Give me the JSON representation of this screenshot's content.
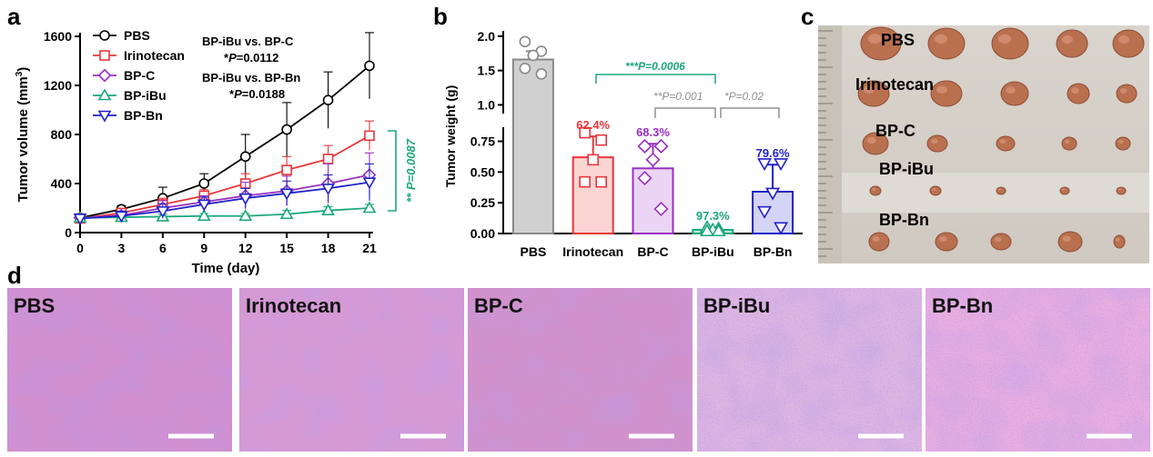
{
  "panel_labels": {
    "a": "a",
    "b": "b",
    "c": "c",
    "d": "d"
  },
  "chart_data": [
    {
      "type": "line",
      "panel": "a",
      "xlabel": "Time (day)",
      "ylabel_main": "Tumor volume (mm",
      "ylabel_sup": "3",
      "ylabel_end": ")",
      "xlim": [
        0,
        21
      ],
      "ylim": [
        0,
        1600
      ],
      "x": [
        0,
        3,
        6,
        9,
        12,
        15,
        18,
        21
      ],
      "xticks": [
        "0",
        "3",
        "6",
        "9",
        "12",
        "15",
        "18",
        "21"
      ],
      "yticks": [
        "0",
        "400",
        "800",
        "1200",
        "1600"
      ],
      "series": [
        {
          "name": "PBS",
          "color": "#000000",
          "marker": "circle",
          "values": [
            120,
            190,
            280,
            400,
            620,
            840,
            1080,
            1360
          ],
          "errors": [
            30,
            30,
            90,
            80,
            180,
            220,
            230,
            270
          ]
        },
        {
          "name": "Irinotecan",
          "color": "#e8373a",
          "marker": "square",
          "values": [
            115,
            160,
            230,
            300,
            400,
            510,
            600,
            790
          ],
          "errors": [
            30,
            30,
            50,
            50,
            80,
            110,
            110,
            120
          ]
        },
        {
          "name": "BP-C",
          "color": "#9b2fc1",
          "marker": "diamond",
          "values": [
            120,
            140,
            200,
            250,
            300,
            340,
            400,
            470
          ],
          "errors": [
            30,
            30,
            60,
            50,
            110,
            120,
            160,
            180
          ]
        },
        {
          "name": "BP-iBu",
          "color": "#1aa878",
          "marker": "triangle-up",
          "values": [
            120,
            125,
            130,
            135,
            135,
            150,
            180,
            200
          ],
          "errors": [
            30,
            20,
            20,
            20,
            20,
            30,
            30,
            30
          ]
        },
        {
          "name": "BP-Bn",
          "color": "#2121c8",
          "marker": "triangle-down",
          "values": [
            115,
            135,
            175,
            230,
            280,
            320,
            360,
            410
          ],
          "errors": [
            30,
            40,
            60,
            60,
            80,
            100,
            110,
            150
          ]
        }
      ],
      "annotations": {
        "line1": "BP-iBu vs. BP-C",
        "line2_star": "*",
        "line2_p": "P",
        "line2_val": "=0.0112",
        "line3": "BP-iBu vs. BP-Bn",
        "line4_star": "*",
        "line4_p": "P",
        "line4_val": "=0.0188",
        "bracket_text": "** P=0.0087"
      }
    },
    {
      "type": "bar",
      "panel": "b",
      "ylabel": "Tumor weight (g)",
      "categories": [
        "PBS",
        "Irinotecan",
        "BP-C",
        "BP-iBu",
        "BP-Bn"
      ],
      "values": [
        1.66,
        0.62,
        0.53,
        0.03,
        0.34
      ],
      "errors": [
        0.12,
        0.17,
        0.2,
        0.02,
        0.22
      ],
      "colors": [
        "#888888",
        "#e8373a",
        "#9b2fc1",
        "#1aa878",
        "#2121c8"
      ],
      "fills": [
        "#d0d0d0",
        "#fbd4d4",
        "#ead6f4",
        "#b8e9d4",
        "#d4d4f6"
      ],
      "points": [
        [
          1.92,
          1.78,
          1.72,
          1.53,
          1.45
        ],
        [
          0.82,
          0.76,
          0.6,
          0.42,
          0.42
        ],
        [
          0.71,
          0.71,
          0.6,
          0.45,
          0.2
        ],
        [
          0.05,
          0.04,
          0.03,
          0.02,
          0.02
        ],
        [
          0.57,
          0.57,
          0.33,
          0.18,
          0.05
        ]
      ],
      "inhibition": [
        "",
        "62.4%",
        "68.3%",
        "97.3%",
        "79.6%"
      ],
      "yticks_lower": [
        "0.00",
        "0.25",
        "0.50",
        "0.75"
      ],
      "yticks_upper": [
        "1.0",
        "1.5",
        "2.0"
      ],
      "ylim_lower": [
        0,
        0.85
      ],
      "ylim_upper": [
        0.9,
        2.05
      ],
      "sig": [
        {
          "text": "***P=0.0006",
          "color": "#1aa878"
        },
        {
          "text": "**P=0.001",
          "color": "#909090"
        },
        {
          "text": "*P=0.02",
          "color": "#909090"
        }
      ]
    }
  ],
  "photo_c": {
    "rows": [
      "PBS",
      "Irinotecan",
      "BP-C",
      "BP-iBu",
      "BP-Bn"
    ]
  },
  "histology_d": {
    "panels": [
      "PBS",
      "Irinotecan",
      "BP-C",
      "BP-iBu",
      "BP-Bn"
    ]
  }
}
